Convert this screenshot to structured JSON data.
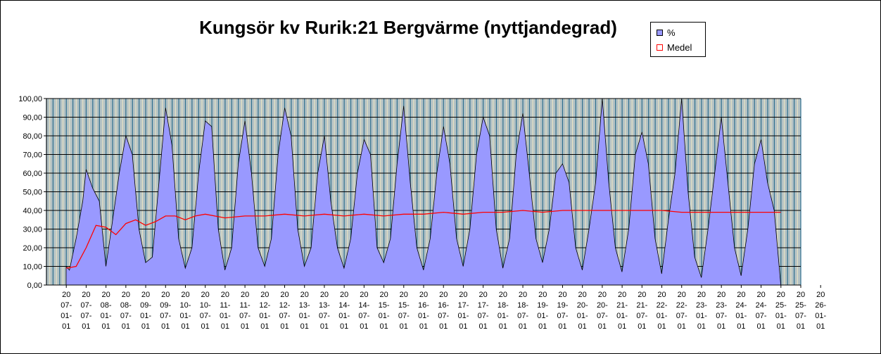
{
  "chart_data": {
    "type": "area",
    "title": "Kungsör kv Rurik:21 Bergvärme (nyttjandegrad)",
    "y_ticks": [
      "0,00",
      "10,00",
      "20,00",
      "30,00",
      "40,00",
      "50,00",
      "60,00",
      "70,00",
      "80,00",
      "90,00",
      "100,00"
    ],
    "ylim": [
      0,
      100
    ],
    "grid": true,
    "legend_position": "top-right",
    "x_ticks": [
      [
        "20",
        "07-",
        "01-",
        "01"
      ],
      [
        "20",
        "07-",
        "07-",
        "01"
      ],
      [
        "20",
        "08-",
        "01-",
        "01"
      ],
      [
        "20",
        "08-",
        "07-",
        "01"
      ],
      [
        "20",
        "09-",
        "01-",
        "01"
      ],
      [
        "20",
        "09-",
        "07-",
        "01"
      ],
      [
        "20",
        "10-",
        "01-",
        "01"
      ],
      [
        "20",
        "10-",
        "07-",
        "01"
      ],
      [
        "20",
        "11-",
        "01-",
        "01"
      ],
      [
        "20",
        "11-",
        "07-",
        "01"
      ],
      [
        "20",
        "12-",
        "01-",
        "01"
      ],
      [
        "20",
        "12-",
        "07-",
        "01"
      ],
      [
        "20",
        "13-",
        "01-",
        "01"
      ],
      [
        "20",
        "13-",
        "07-",
        "01"
      ],
      [
        "20",
        "14-",
        "01-",
        "01"
      ],
      [
        "20",
        "14-",
        "07-",
        "01"
      ],
      [
        "20",
        "15-",
        "01-",
        "01"
      ],
      [
        "20",
        "15-",
        "07-",
        "01"
      ],
      [
        "20",
        "16-",
        "01-",
        "01"
      ],
      [
        "20",
        "16-",
        "07-",
        "01"
      ],
      [
        "20",
        "17-",
        "01-",
        "01"
      ],
      [
        "20",
        "17-",
        "07-",
        "01"
      ],
      [
        "20",
        "18-",
        "01-",
        "01"
      ],
      [
        "20",
        "18-",
        "07-",
        "01"
      ],
      [
        "20",
        "19-",
        "01-",
        "01"
      ],
      [
        "20",
        "19-",
        "07-",
        "01"
      ],
      [
        "20",
        "20-",
        "01-",
        "01"
      ],
      [
        "20",
        "20-",
        "07-",
        "01"
      ],
      [
        "20",
        "21-",
        "01-",
        "01"
      ],
      [
        "20",
        "21-",
        "07-",
        "01"
      ],
      [
        "20",
        "22-",
        "01-",
        "01"
      ],
      [
        "20",
        "22-",
        "07-",
        "01"
      ],
      [
        "20",
        "23-",
        "01-",
        "01"
      ],
      [
        "20",
        "23-",
        "07-",
        "01"
      ],
      [
        "20",
        "24-",
        "01-",
        "01"
      ],
      [
        "20",
        "24-",
        "07-",
        "01"
      ],
      [
        "20",
        "25-",
        "01-",
        "01"
      ],
      [
        "20",
        "25-",
        "07-",
        "01"
      ],
      [
        "20",
        "26-",
        "01-",
        "01"
      ]
    ],
    "series": [
      {
        "name": "%",
        "color": "#9999ff",
        "x": [
          "2007-07-01",
          "2007-08-01",
          "2007-10-01",
          "2007-12-01",
          "2008-01-01",
          "2008-03-01",
          "2008-05-01",
          "2008-07-01",
          "2008-09-01",
          "2008-11-01",
          "2009-01-01",
          "2009-03-01",
          "2009-05-01",
          "2009-07-01",
          "2009-09-01",
          "2009-11-01",
          "2010-01-01",
          "2010-03-01",
          "2010-05-01",
          "2010-07-01",
          "2010-09-01",
          "2010-11-01",
          "2011-01-01",
          "2011-03-01",
          "2011-05-01",
          "2011-07-01",
          "2011-09-01",
          "2011-11-01",
          "2012-01-01",
          "2012-03-01",
          "2012-05-01",
          "2012-07-01",
          "2012-09-01",
          "2012-11-01",
          "2013-01-01",
          "2013-03-01",
          "2013-05-01",
          "2013-07-01",
          "2013-09-01",
          "2013-11-01",
          "2014-01-01",
          "2014-03-01",
          "2014-05-01",
          "2014-07-01",
          "2014-09-01",
          "2014-11-01",
          "2015-01-01",
          "2015-03-01",
          "2015-05-01",
          "2015-07-01",
          "2015-09-01",
          "2015-11-01",
          "2016-01-01",
          "2016-03-01",
          "2016-05-01",
          "2016-07-01",
          "2016-09-01",
          "2016-11-01",
          "2017-01-01",
          "2017-03-01",
          "2017-05-01",
          "2017-07-01",
          "2017-09-01",
          "2017-11-01",
          "2018-01-01",
          "2018-03-01",
          "2018-05-01",
          "2018-07-01",
          "2018-09-01",
          "2018-11-01",
          "2019-01-01",
          "2019-03-01",
          "2019-05-01",
          "2019-07-01",
          "2019-09-01",
          "2019-11-01",
          "2020-01-01",
          "2020-03-01",
          "2020-05-01",
          "2020-07-01",
          "2020-09-01",
          "2020-11-01",
          "2021-01-01",
          "2021-03-01",
          "2021-05-01",
          "2021-07-01",
          "2021-09-01",
          "2021-11-01",
          "2022-01-01",
          "2022-03-01",
          "2022-05-01",
          "2022-07-01",
          "2022-09-01",
          "2022-11-01",
          "2023-01-01",
          "2023-03-01",
          "2023-05-01",
          "2023-07-01",
          "2023-09-01",
          "2023-11-01",
          "2024-01-01",
          "2024-03-01",
          "2024-05-01",
          "2024-07-01",
          "2024-09-01",
          "2024-11-01",
          "2025-01-01",
          "2025-03-01",
          "2025-05-01",
          "2025-07-01"
        ],
        "values": [
          10,
          8,
          25,
          45,
          62,
          52,
          45,
          10,
          35,
          60,
          80,
          70,
          30,
          12,
          15,
          55,
          95,
          75,
          25,
          9,
          20,
          60,
          88,
          85,
          30,
          8,
          20,
          65,
          88,
          60,
          20,
          10,
          25,
          70,
          95,
          80,
          30,
          10,
          20,
          60,
          80,
          45,
          20,
          9,
          25,
          60,
          78,
          70,
          20,
          12,
          25,
          65,
          96,
          55,
          20,
          8,
          25,
          60,
          85,
          65,
          25,
          10,
          30,
          70,
          90,
          80,
          30,
          9,
          25,
          70,
          92,
          60,
          25,
          12,
          30,
          60,
          65,
          55,
          20,
          8,
          30,
          55,
          100,
          55,
          20,
          7,
          30,
          70,
          82,
          65,
          25,
          6,
          35,
          60,
          100,
          50,
          15,
          4,
          30,
          60,
          90,
          55,
          20,
          5,
          30,
          65,
          78,
          55,
          40,
          0
        ]
      },
      {
        "name": "Medel",
        "color": "#ff0000",
        "x": [
          "2007-07-01",
          "2007-10-01",
          "2008-01-01",
          "2008-04-01",
          "2008-07-01",
          "2008-10-01",
          "2009-01-01",
          "2009-04-01",
          "2009-07-01",
          "2009-10-01",
          "2010-01-01",
          "2010-04-01",
          "2010-07-01",
          "2010-10-01",
          "2011-01-01",
          "2011-07-01",
          "2012-01-01",
          "2012-07-01",
          "2013-01-01",
          "2013-07-01",
          "2014-01-01",
          "2014-07-01",
          "2015-01-01",
          "2015-07-01",
          "2016-01-01",
          "2016-07-01",
          "2017-01-01",
          "2017-07-01",
          "2018-01-01",
          "2018-07-01",
          "2019-01-01",
          "2019-07-01",
          "2020-01-01",
          "2020-07-01",
          "2021-01-01",
          "2021-07-01",
          "2022-01-01",
          "2022-07-01",
          "2023-01-01",
          "2023-07-01",
          "2024-01-01",
          "2024-07-01",
          "2025-01-01",
          "2025-07-01"
        ],
        "values": [
          9,
          10,
          20,
          32,
          31,
          27,
          33,
          35,
          32,
          34,
          37,
          37,
          35,
          37,
          38,
          36,
          37,
          37,
          38,
          37,
          38,
          37,
          38,
          37,
          38,
          38,
          39,
          38,
          39,
          39,
          40,
          39,
          40,
          40,
          40,
          40,
          40,
          40,
          39,
          39,
          39,
          39,
          39,
          39
        ]
      }
    ]
  }
}
